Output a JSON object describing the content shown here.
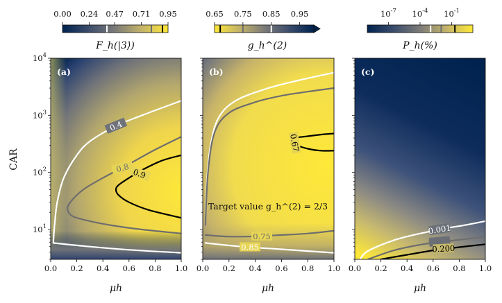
{
  "chart_data": {
    "type": "heatmap",
    "shared": {
      "xlabel": "μh",
      "ylabel": "CAR",
      "xlim": [
        0.0,
        1.0
      ],
      "ylim": [
        3,
        10000
      ],
      "yscale": "log",
      "x_ticks": [
        "0.0",
        "0.2",
        "0.4",
        "0.6",
        "0.8",
        "1.0"
      ],
      "y_ticks": [
        "10^1",
        "10^2",
        "10^3",
        "10^4"
      ]
    },
    "panels": [
      {
        "label": "(a)",
        "colorbar_label": "F_h(|3⟩)",
        "colorbar_ticks": [
          "0.00",
          "0.24",
          "0.47",
          "0.71",
          "0.95"
        ],
        "colorbar_marks": [
          0.4,
          0.8,
          0.9
        ],
        "contours": [
          {
            "level": "0.4",
            "color": "#ffffff",
            "points": [
              [
                0.02,
                6.0
              ],
              [
                0.03,
                12
              ],
              [
                0.05,
                30
              ],
              [
                0.1,
                80
              ],
              [
                0.2,
                200
              ],
              [
                0.3,
                350
              ],
              [
                0.5,
                650
              ],
              [
                0.7,
                1000
              ],
              [
                1.0,
                1800
              ]
            ]
          },
          {
            "level": "0.8",
            "color": "#6e6e6e",
            "points": [
              [
                1.0,
                420
              ],
              [
                0.8,
                250
              ],
              [
                0.6,
                140
              ],
              [
                0.4,
                80
              ],
              [
                0.25,
                50
              ],
              [
                0.15,
                30
              ],
              [
                0.13,
                22
              ],
              [
                0.17,
                17
              ],
              [
                0.3,
                14
              ],
              [
                0.5,
                11.5
              ],
              [
                0.7,
                10
              ],
              [
                1.0,
                8.5
              ]
            ]
          },
          {
            "level": "0.9",
            "color": "#000000",
            "points": [
              [
                1.0,
                200
              ],
              [
                0.85,
                160
              ],
              [
                0.7,
                110
              ],
              [
                0.6,
                80
              ],
              [
                0.52,
                60
              ],
              [
                0.5,
                50
              ],
              [
                0.52,
                40
              ],
              [
                0.6,
                30
              ],
              [
                0.75,
                22
              ],
              [
                1.0,
                16
              ]
            ]
          },
          {
            "level": "0.4",
            "color": "#ffffff",
            "points": [
              [
                0.02,
                5.8
              ],
              [
                0.3,
                5.0
              ],
              [
                0.6,
                4.4
              ],
              [
                1.0,
                3.9
              ]
            ]
          }
        ]
      },
      {
        "label": "(b)",
        "colorbar_label": "g_h^(2)",
        "colorbar_ticks": [
          "0.65",
          "0.75",
          "0.85",
          "0.95"
        ],
        "colorbar_marks": [
          0.67,
          0.75,
          0.85
        ],
        "annotation": "Target value g_h^(2) = 2/3",
        "contours": [
          {
            "level": "0.85",
            "color": "#ffffff",
            "points": [
              [
                0.02,
                12
              ],
              [
                0.03,
                60
              ],
              [
                0.06,
                300
              ],
              [
                0.12,
                900
              ],
              [
                0.25,
                1800
              ],
              [
                0.5,
                3000
              ],
              [
                0.75,
                4200
              ],
              [
                1.0,
                5600
              ]
            ]
          },
          {
            "level": "0.75",
            "color": "#6e6e6e",
            "points": [
              [
                0.02,
                12
              ],
              [
                0.04,
                100
              ],
              [
                0.09,
                500
              ],
              [
                0.2,
                1100
              ],
              [
                0.4,
                1700
              ],
              [
                0.6,
                2200
              ],
              [
                0.8,
                2600
              ],
              [
                1.0,
                3000
              ]
            ]
          },
          {
            "level": "0.67",
            "color": "#000000",
            "points": [
              [
                0.68,
                400
              ],
              [
                0.72,
                300
              ],
              [
                0.8,
                260
              ],
              [
                0.9,
                240
              ],
              [
                1.0,
                240
              ]
            ]
          },
          {
            "level": "0.67",
            "color": "#000000",
            "points": [
              [
                0.68,
                400
              ],
              [
                0.8,
                430
              ],
              [
                0.9,
                460
              ],
              [
                1.0,
                480
              ]
            ]
          },
          {
            "level": "0.75",
            "color": "#6e6e6e",
            "points": [
              [
                0.02,
                8
              ],
              [
                0.2,
                7.5
              ],
              [
                0.4,
                7.6
              ],
              [
                0.6,
                8
              ],
              [
                0.8,
                8.5
              ],
              [
                1.0,
                9.5
              ]
            ]
          },
          {
            "level": "0.85",
            "color": "#ffffff",
            "points": [
              [
                0.02,
                5.8
              ],
              [
                0.3,
                5.0
              ],
              [
                0.6,
                4.5
              ],
              [
                1.0,
                3.9
              ]
            ]
          }
        ]
      },
      {
        "label": "(c)",
        "colorbar_label": "P_h(%)",
        "colorbar_ticks": [
          "10^-7",
          "10^-4",
          "10^-1"
        ],
        "colorbar_marks": [
          0.001,
          0.01,
          0.2
        ],
        "contours": [
          {
            "level": "0.001",
            "color": "#ffffff",
            "points": [
              [
                0.04,
                3
              ],
              [
                0.1,
                4.2
              ],
              [
                0.3,
                6.5
              ],
              [
                0.5,
                8.5
              ],
              [
                0.7,
                10.5
              ],
              [
                0.85,
                12
              ],
              [
                1.0,
                14
              ]
            ]
          },
          {
            "level": "0.010",
            "color": "#6e6e6e",
            "points": [
              [
                0.1,
                3
              ],
              [
                0.3,
                4.3
              ],
              [
                0.5,
                5.4
              ],
              [
                0.7,
                6.2
              ],
              [
                0.85,
                6.8
              ],
              [
                1.0,
                7.4
              ]
            ]
          },
          {
            "level": "0.200",
            "color": "#000000",
            "points": [
              [
                0.2,
                3
              ],
              [
                0.4,
                3.6
              ],
              [
                0.6,
                4.3
              ],
              [
                0.8,
                4.9
              ],
              [
                1.0,
                5.5
              ]
            ]
          }
        ]
      }
    ]
  }
}
